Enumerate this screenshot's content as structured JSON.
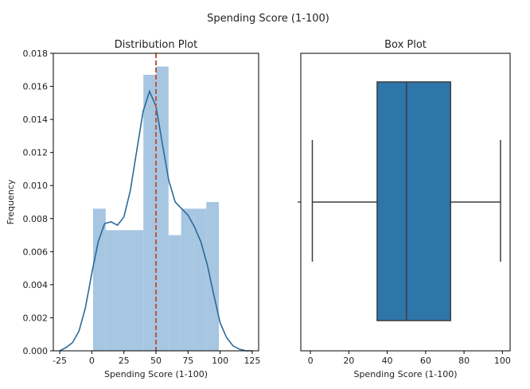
{
  "figure": {
    "suptitle": "Spending Score (1-100)"
  },
  "chart_data": [
    {
      "type": "histogram",
      "title": "Distribution Plot",
      "xlabel": "Spending Score (1-100)",
      "ylabel": "Frequency",
      "xlim": [
        -30,
        130
      ],
      "ylim": [
        0,
        0.018
      ],
      "xticks": [
        -25,
        0,
        25,
        50,
        75,
        100,
        125
      ],
      "yticks": [
        0.0,
        0.002,
        0.004,
        0.006,
        0.008,
        0.01,
        0.012,
        0.014,
        0.016,
        0.018
      ],
      "ytick_labels": [
        "0.000",
        "0.002",
        "0.004",
        "0.006",
        "0.008",
        "0.010",
        "0.012",
        "0.014",
        "0.016",
        "0.018"
      ],
      "bins": [
        {
          "x0": 1,
          "x1": 10.8,
          "value": 0.0086
        },
        {
          "x0": 10.8,
          "x1": 20.6,
          "value": 0.0073
        },
        {
          "x0": 20.6,
          "x1": 30.4,
          "value": 0.0073
        },
        {
          "x0": 30.4,
          "x1": 40.2,
          "value": 0.0073
        },
        {
          "x0": 40.2,
          "x1": 50.0,
          "value": 0.0167
        },
        {
          "x0": 50.0,
          "x1": 59.8,
          "value": 0.0172
        },
        {
          "x0": 59.8,
          "x1": 69.6,
          "value": 0.007
        },
        {
          "x0": 69.6,
          "x1": 79.4,
          "value": 0.0086
        },
        {
          "x0": 79.4,
          "x1": 89.2,
          "value": 0.0086
        },
        {
          "x0": 89.2,
          "x1": 99.0,
          "value": 0.009
        }
      ],
      "kde": {
        "x": [
          -25,
          -20,
          -15,
          -10,
          -5,
          0,
          5,
          10,
          15,
          20,
          25,
          30,
          35,
          40,
          45,
          50,
          55,
          60,
          65,
          70,
          75,
          80,
          85,
          90,
          95,
          100,
          105,
          110,
          115,
          120,
          125
        ],
        "y": [
          0.0,
          0.0002,
          0.0005,
          0.0012,
          0.0026,
          0.0047,
          0.0066,
          0.0077,
          0.0078,
          0.0076,
          0.0081,
          0.0097,
          0.0121,
          0.0145,
          0.0157,
          0.0148,
          0.0125,
          0.0103,
          0.009,
          0.0086,
          0.0082,
          0.0075,
          0.0066,
          0.0052,
          0.0034,
          0.0017,
          0.0008,
          0.0003,
          0.0001,
          0.0,
          0.0
        ]
      },
      "mean_line": 50,
      "colors": {
        "bar": "#a6c6e2",
        "kde": "#2a6a99",
        "mean": "#c0553b"
      }
    },
    {
      "type": "box",
      "title": "Box Plot",
      "xlabel": "Spending Score (1-100)",
      "xlim": [
        -5,
        104
      ],
      "xticks": [
        0,
        20,
        40,
        60,
        80,
        100
      ],
      "box": {
        "min": 1,
        "q1": 34.75,
        "median": 50,
        "q3": 73,
        "max": 99
      },
      "colors": {
        "box": "#2e75aa",
        "line": "#3d3d3d"
      }
    }
  ]
}
